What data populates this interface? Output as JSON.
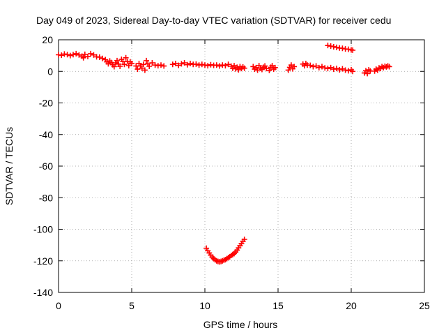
{
  "chart_data": {
    "type": "scatter",
    "title": "Day 049 of 2023, Sidereal Day-to-day VTEC variation (SDTVAR) for receiver cedu",
    "xlabel": "GPS time / hours",
    "ylabel": "SDTVAR / TECUs",
    "xlim": [
      0,
      25
    ],
    "ylim": [
      -140,
      20
    ],
    "xticks": [
      0,
      5,
      10,
      15,
      20,
      25
    ],
    "yticks": [
      20,
      0,
      -20,
      -40,
      -60,
      -80,
      -100,
      -120,
      -140
    ],
    "grid": true,
    "legend": "none",
    "marker": "plus",
    "color": "#ff0000",
    "series": [
      {
        "points": [
          [
            0.0,
            10.5
          ],
          [
            0.2,
            10.2
          ],
          [
            0.4,
            11.0
          ],
          [
            0.6,
            10.6
          ],
          [
            0.8,
            10.0
          ],
          [
            1.0,
            10.6
          ],
          [
            1.2,
            11.2
          ],
          [
            1.4,
            10.4
          ],
          [
            1.6,
            9.6
          ],
          [
            1.7,
            8.6
          ],
          [
            1.8,
            10.8
          ],
          [
            2.0,
            9.4
          ],
          [
            2.2,
            11.2
          ],
          [
            2.4,
            10.4
          ],
          [
            2.6,
            9.2
          ],
          [
            2.8,
            9.0
          ],
          [
            3.0,
            8.2
          ],
          [
            3.2,
            7.4
          ],
          [
            3.3,
            6.0
          ],
          [
            3.4,
            4.8
          ],
          [
            3.5,
            6.6
          ],
          [
            3.6,
            5.6
          ],
          [
            3.7,
            4.2
          ],
          [
            3.8,
            3.0
          ],
          [
            3.9,
            5.4
          ],
          [
            4.0,
            6.8
          ],
          [
            4.1,
            4.6
          ],
          [
            4.2,
            3.2
          ],
          [
            4.3,
            7.6
          ],
          [
            4.4,
            6.2
          ],
          [
            4.5,
            4.4
          ],
          [
            4.6,
            8.6
          ],
          [
            4.7,
            6.2
          ],
          [
            4.8,
            3.6
          ],
          [
            4.9,
            6.0
          ],
          [
            5.0,
            5.0
          ],
          [
            5.3,
            3.4
          ],
          [
            5.4,
            1.4
          ],
          [
            5.5,
            5.0
          ],
          [
            5.6,
            3.4
          ],
          [
            5.7,
            2.0
          ],
          [
            5.8,
            4.4
          ],
          [
            5.9,
            0.8
          ],
          [
            6.0,
            6.8
          ],
          [
            6.1,
            4.8
          ],
          [
            6.2,
            3.2
          ],
          [
            6.4,
            5.4
          ],
          [
            6.6,
            4.0
          ],
          [
            6.8,
            3.6
          ],
          [
            7.0,
            4.0
          ],
          [
            7.2,
            3.4
          ],
          [
            7.8,
            4.4
          ],
          [
            8.0,
            5.0
          ],
          [
            8.2,
            3.8
          ],
          [
            8.4,
            4.8
          ],
          [
            8.6,
            5.4
          ],
          [
            8.8,
            4.2
          ],
          [
            9.0,
            5.0
          ],
          [
            9.2,
            4.4
          ],
          [
            9.4,
            4.6
          ],
          [
            9.6,
            4.0
          ],
          [
            9.8,
            4.4
          ],
          [
            10.0,
            4.0
          ],
          [
            10.2,
            3.6
          ],
          [
            10.4,
            4.2
          ],
          [
            10.6,
            3.8
          ],
          [
            10.8,
            4.0
          ],
          [
            11.0,
            3.4
          ],
          [
            11.2,
            4.0
          ],
          [
            11.4,
            3.6
          ],
          [
            11.6,
            4.4
          ],
          [
            11.8,
            3.2
          ],
          [
            11.9,
            2.0
          ],
          [
            12.0,
            3.6
          ],
          [
            12.1,
            1.6
          ],
          [
            12.2,
            2.6
          ],
          [
            12.3,
            1.0
          ],
          [
            12.4,
            3.0
          ],
          [
            12.5,
            1.8
          ],
          [
            12.6,
            2.8
          ],
          [
            12.7,
            2.0
          ],
          [
            13.3,
            3.0
          ],
          [
            13.4,
            1.4
          ],
          [
            13.5,
            2.4
          ],
          [
            13.6,
            0.8
          ],
          [
            13.7,
            3.6
          ],
          [
            13.8,
            2.0
          ],
          [
            13.9,
            1.2
          ],
          [
            14.0,
            2.6
          ],
          [
            14.1,
            3.4
          ],
          [
            14.2,
            1.8
          ],
          [
            14.4,
            0.6
          ],
          [
            14.5,
            2.6
          ],
          [
            14.6,
            3.6
          ],
          [
            14.7,
            1.4
          ],
          [
            14.8,
            2.4
          ],
          [
            15.7,
            0.8
          ],
          [
            15.8,
            2.6
          ],
          [
            15.9,
            4.0
          ],
          [
            16.0,
            1.6
          ],
          [
            16.1,
            3.0
          ],
          [
            16.7,
            4.6
          ],
          [
            16.8,
            3.6
          ],
          [
            16.9,
            5.0
          ],
          [
            17.0,
            4.0
          ],
          [
            17.2,
            3.8
          ],
          [
            17.4,
            3.0
          ],
          [
            17.6,
            3.4
          ],
          [
            17.8,
            2.4
          ],
          [
            18.0,
            3.0
          ],
          [
            18.2,
            2.2
          ],
          [
            18.4,
            1.8
          ],
          [
            18.6,
            2.4
          ],
          [
            18.8,
            1.4
          ],
          [
            19.0,
            1.8
          ],
          [
            19.2,
            1.0
          ],
          [
            19.4,
            1.6
          ],
          [
            19.6,
            0.8
          ],
          [
            19.8,
            0.4
          ],
          [
            20.0,
            1.0
          ],
          [
            20.1,
            0.0
          ],
          [
            18.4,
            16.4
          ],
          [
            18.6,
            16.0
          ],
          [
            18.8,
            15.6
          ],
          [
            19.0,
            15.2
          ],
          [
            19.2,
            14.8
          ],
          [
            19.4,
            14.6
          ],
          [
            19.6,
            14.2
          ],
          [
            19.8,
            14.0
          ],
          [
            20.0,
            13.6
          ],
          [
            20.1,
            13.4
          ],
          [
            20.9,
            -1.0
          ],
          [
            21.0,
            0.4
          ],
          [
            21.1,
            -1.4
          ],
          [
            21.2,
            1.0
          ],
          [
            21.3,
            0.2
          ],
          [
            21.6,
            0.2
          ],
          [
            21.7,
            1.4
          ],
          [
            21.8,
            0.8
          ],
          [
            21.9,
            2.2
          ],
          [
            22.0,
            1.8
          ],
          [
            22.1,
            3.0
          ],
          [
            22.2,
            2.4
          ],
          [
            22.3,
            3.2
          ],
          [
            22.4,
            2.8
          ],
          [
            22.5,
            3.4
          ],
          [
            22.6,
            3.0
          ],
          [
            10.1,
            -112.0
          ],
          [
            10.2,
            -113.6
          ],
          [
            10.3,
            -115.0
          ],
          [
            10.4,
            -116.4
          ],
          [
            10.5,
            -117.6
          ],
          [
            10.6,
            -118.6
          ],
          [
            10.7,
            -119.4
          ],
          [
            10.8,
            -120.0
          ],
          [
            10.9,
            -120.4
          ],
          [
            11.0,
            -120.6
          ],
          [
            11.1,
            -120.4
          ],
          [
            11.2,
            -120.0
          ],
          [
            11.3,
            -119.6
          ],
          [
            11.4,
            -119.2
          ],
          [
            11.5,
            -118.6
          ],
          [
            11.6,
            -118.0
          ],
          [
            11.7,
            -117.4
          ],
          [
            11.8,
            -116.6
          ],
          [
            11.9,
            -116.0
          ],
          [
            12.0,
            -115.4
          ],
          [
            12.1,
            -114.4
          ],
          [
            12.2,
            -113.2
          ],
          [
            12.3,
            -111.8
          ],
          [
            12.4,
            -110.4
          ],
          [
            12.5,
            -109.0
          ],
          [
            12.6,
            -107.6
          ],
          [
            12.7,
            -106.4
          ]
        ]
      }
    ]
  }
}
